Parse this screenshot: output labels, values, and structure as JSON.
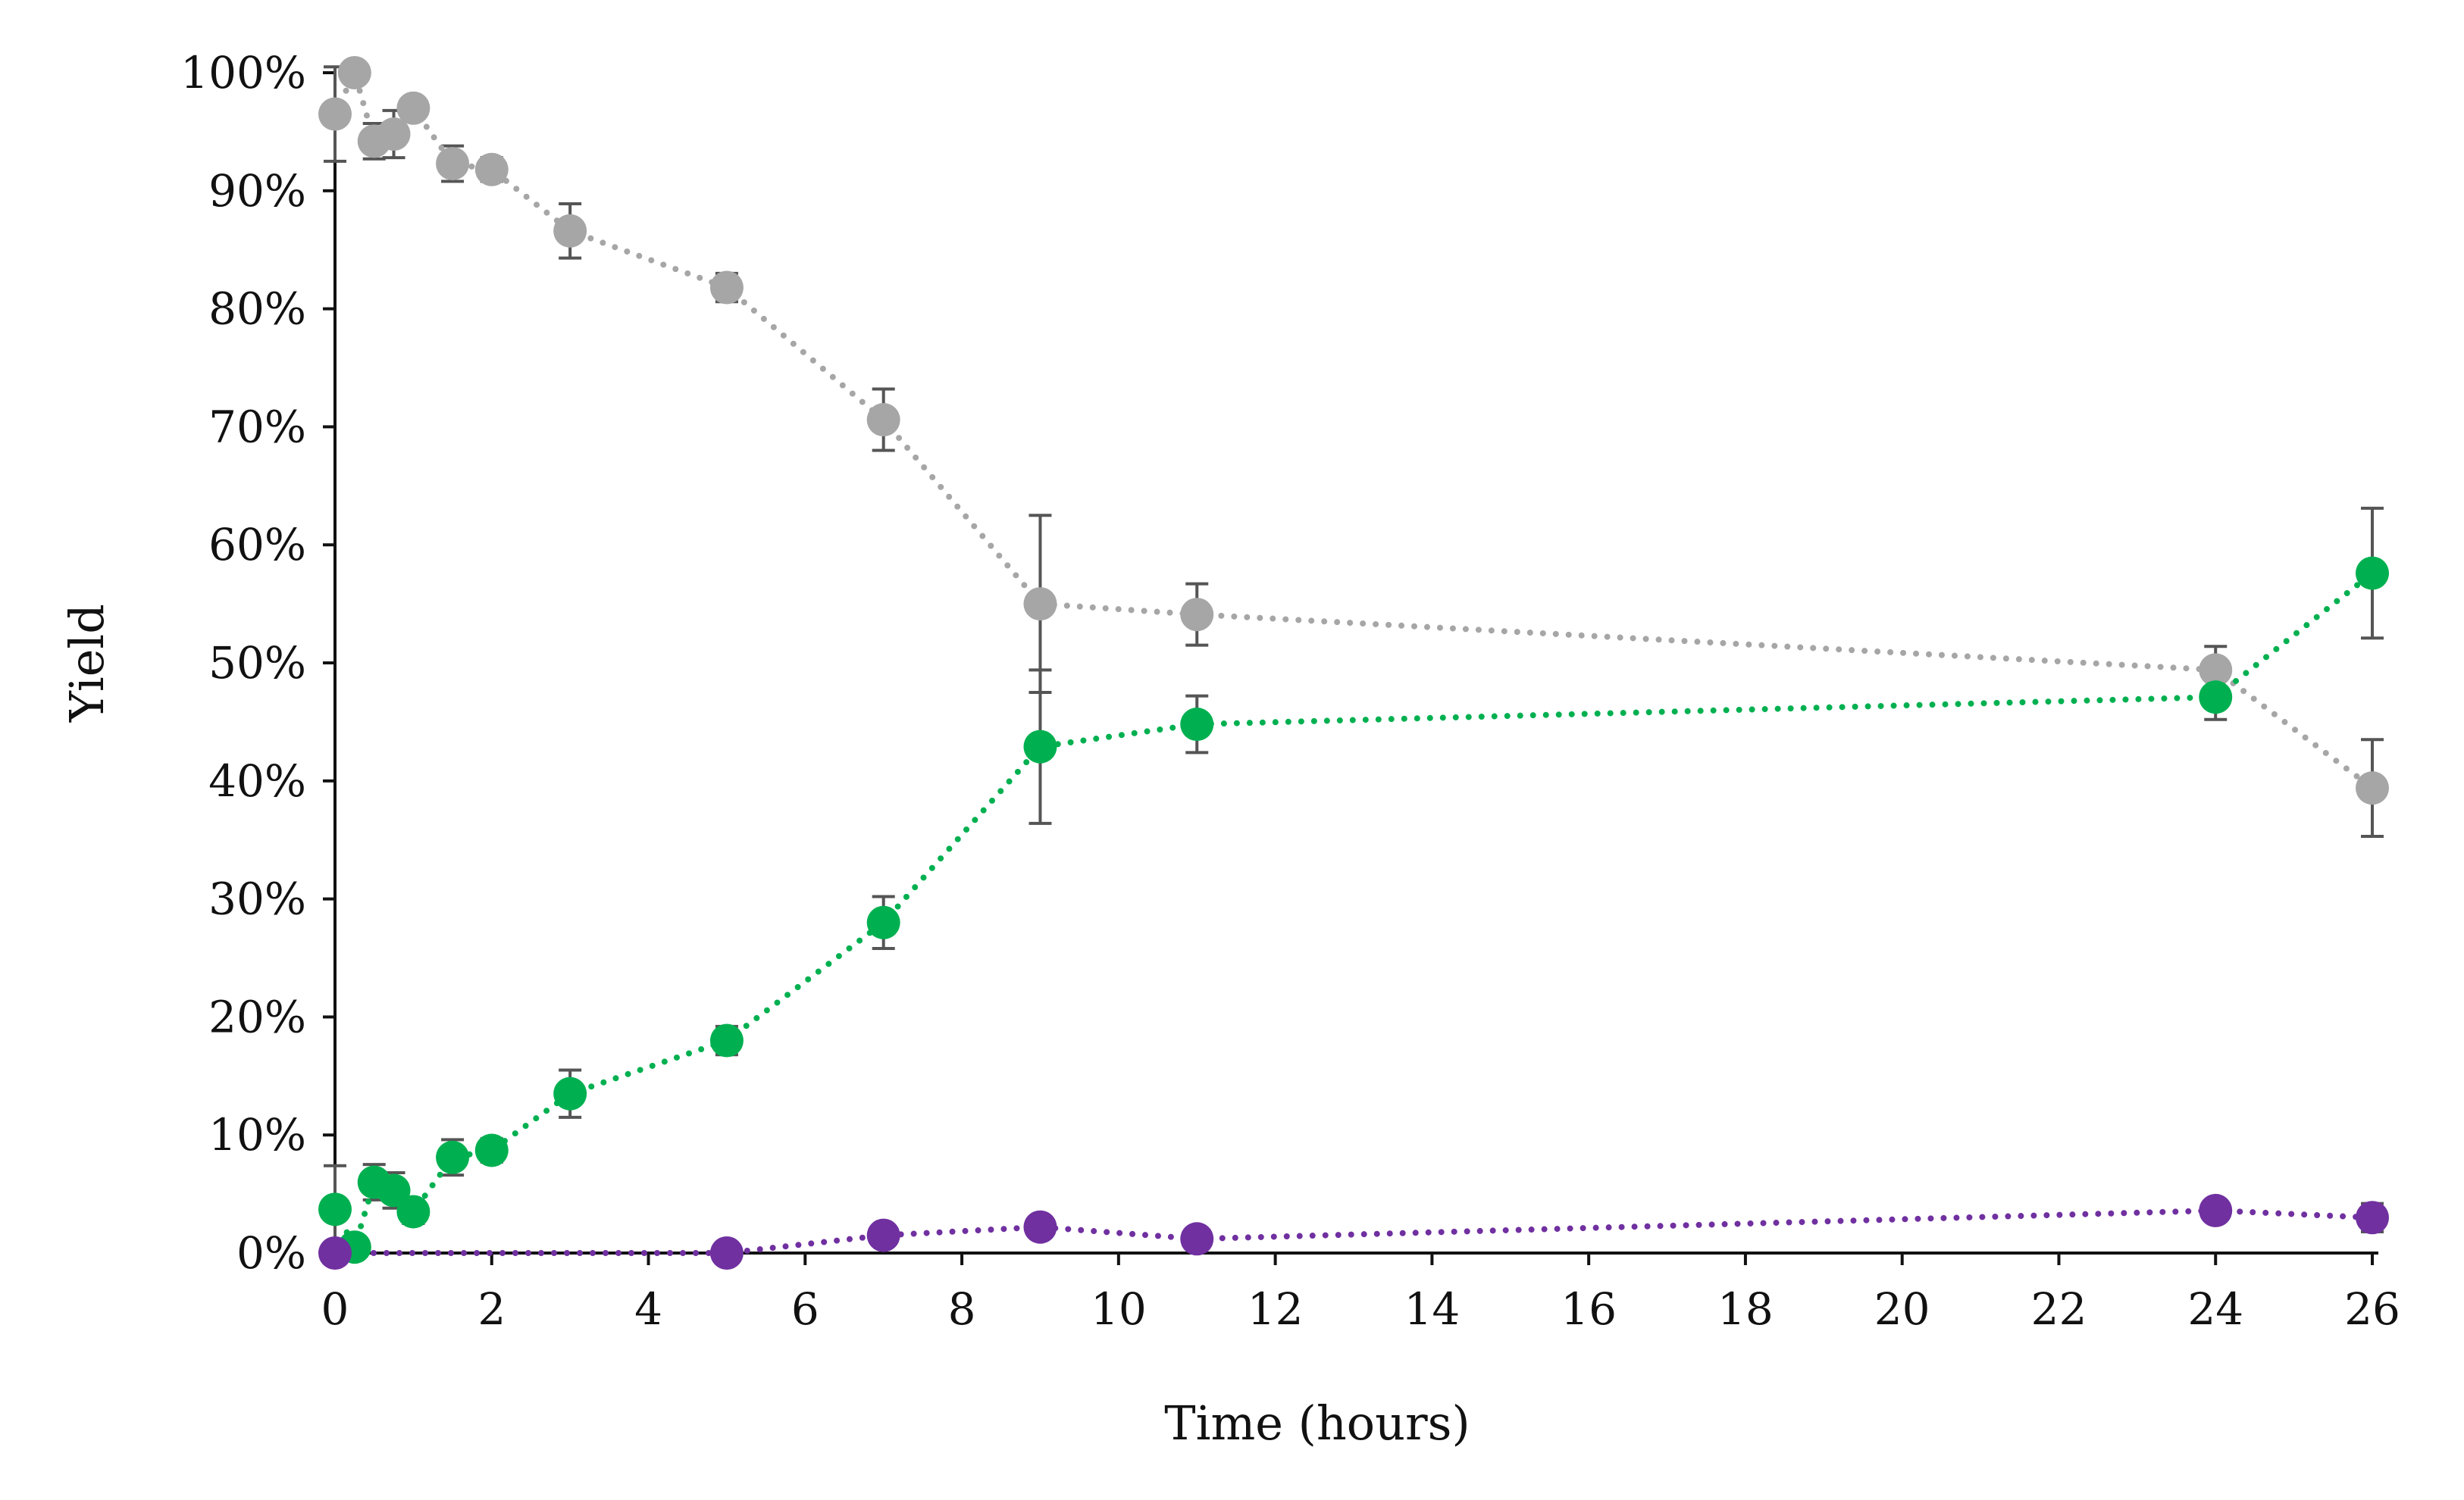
{
  "chart_data": {
    "type": "scatter",
    "title": "",
    "xlabel": "Time (hours)",
    "ylabel": "Yield",
    "xlim": [
      0,
      26
    ],
    "ylim": [
      0,
      100
    ],
    "x_ticks": [
      0,
      2,
      4,
      6,
      8,
      10,
      12,
      14,
      16,
      18,
      20,
      22,
      24,
      26
    ],
    "x_tick_labels": [
      "0",
      "2",
      "4",
      "6",
      "8",
      "10",
      "12",
      "14",
      "16",
      "18",
      "20",
      "22",
      "24",
      "26"
    ],
    "y_ticks": [
      0,
      10,
      20,
      30,
      40,
      50,
      60,
      70,
      80,
      90,
      100
    ],
    "y_tick_labels": [
      "0%",
      "10%",
      "20%",
      "30%",
      "40%",
      "50%",
      "60%",
      "70%",
      "80%",
      "90%",
      "100%"
    ],
    "grid": false,
    "legend": "none",
    "line_style": "dotted",
    "series": [
      {
        "name": "gray",
        "color": "#a6a6a6",
        "x": [
          0,
          0.25,
          0.5,
          0.75,
          1,
          1.5,
          2,
          3,
          5,
          7,
          9,
          11,
          24,
          26
        ],
        "y": [
          96.5,
          100,
          94.2,
          94.8,
          97,
          92.3,
          91.8,
          86.6,
          81.8,
          70.6,
          55,
          54.1,
          49.4,
          39.4
        ],
        "err": [
          4,
          0,
          1.5,
          2,
          0.8,
          1.5,
          1,
          2.3,
          1.2,
          2.6,
          7.5,
          2.6,
          2,
          4.1
        ]
      },
      {
        "name": "green",
        "color": "#00b050",
        "x": [
          0,
          0.25,
          0.5,
          0.75,
          1,
          1.5,
          2,
          3,
          5,
          7,
          9,
          11,
          24,
          26
        ],
        "y": [
          3.7,
          0.5,
          6,
          5.3,
          3.5,
          8.1,
          8.7,
          13.5,
          18,
          28,
          42.9,
          44.8,
          47.1,
          57.6
        ],
        "err": [
          3.7,
          0,
          1.5,
          1.5,
          1,
          1.5,
          1,
          2,
          1.2,
          2.2,
          6.5,
          2.4,
          1.9,
          5.5
        ]
      },
      {
        "name": "purple",
        "color": "#7030a0",
        "x": [
          0,
          5,
          7,
          9,
          11,
          24,
          26
        ],
        "y": [
          0,
          0,
          1.5,
          2.2,
          1.2,
          3.6,
          3
        ],
        "err": [
          0,
          0,
          0.4,
          0.8,
          0.6,
          0.6,
          1.2
        ]
      }
    ]
  }
}
